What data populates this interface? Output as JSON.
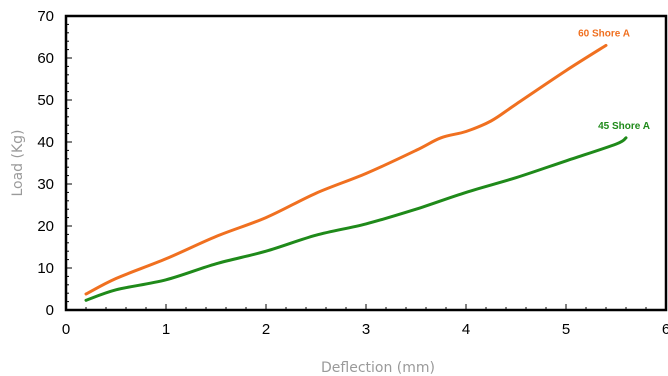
{
  "chart_data": {
    "type": "line",
    "xlabel": "Deflection (mm)",
    "ylabel": "Load (Kg)",
    "xlim": [
      0,
      6
    ],
    "ylim": [
      0,
      70
    ],
    "xticks": [
      "0",
      "1",
      "2",
      "3",
      "4",
      "5",
      "6"
    ],
    "yticks": [
      "0",
      "10",
      "20",
      "30",
      "40",
      "50",
      "60",
      "70"
    ],
    "grid": false,
    "series": [
      {
        "name": "60 Shore A",
        "color": "#f07020",
        "x": [
          0.2,
          0.5,
          1.0,
          1.5,
          2.0,
          2.5,
          3.0,
          3.5,
          3.75,
          4.0,
          4.25,
          4.5,
          5.0,
          5.4
        ],
        "y": [
          3.8,
          7.5,
          12.2,
          17.5,
          22.0,
          27.8,
          32.5,
          38.0,
          41.0,
          42.5,
          45.0,
          49.0,
          57.0,
          63.0
        ]
      },
      {
        "name": "45 Shore A",
        "color": "#1f8a1a",
        "x": [
          0.2,
          0.5,
          1.0,
          1.5,
          2.0,
          2.5,
          3.0,
          3.5,
          4.0,
          4.5,
          5.0,
          5.5,
          5.6
        ],
        "y": [
          2.3,
          4.8,
          7.2,
          11.0,
          14.0,
          17.8,
          20.5,
          24.0,
          28.0,
          31.5,
          35.5,
          39.5,
          41.0
        ]
      }
    ]
  }
}
